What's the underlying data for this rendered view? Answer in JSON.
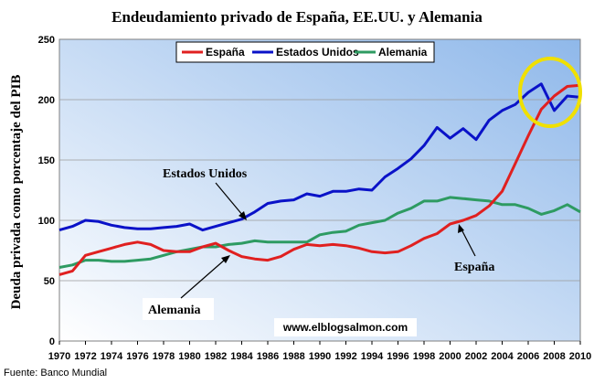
{
  "chart_data": {
    "type": "line",
    "title": "Endeudamiento privado de España, EE.UU. y Alemania",
    "ylabel": "Deuda privada como porcentaje del PIB",
    "xlabel": "",
    "ylim": [
      0,
      250
    ],
    "yticks": [
      "0",
      "50",
      "100",
      "150",
      "200",
      "250"
    ],
    "xlim": [
      1970,
      2010
    ],
    "xticks": [
      "1970",
      "1972",
      "1974",
      "1976",
      "1978",
      "1980",
      "1982",
      "1984",
      "1986",
      "1988",
      "1990",
      "1992",
      "1994",
      "1996",
      "1998",
      "2000",
      "2002",
      "2004",
      "2006",
      "2008",
      "2010"
    ],
    "grid": true,
    "legend_position": "top",
    "x": [
      1970,
      1971,
      1972,
      1973,
      1974,
      1975,
      1976,
      1977,
      1978,
      1979,
      1980,
      1981,
      1982,
      1983,
      1984,
      1985,
      1986,
      1987,
      1988,
      1989,
      1990,
      1991,
      1992,
      1993,
      1994,
      1995,
      1996,
      1997,
      1998,
      1999,
      2000,
      2001,
      2002,
      2003,
      2004,
      2005,
      2006,
      2007,
      2008,
      2009,
      2010
    ],
    "series": [
      {
        "name": "España",
        "color": "#e02020",
        "values": [
          55,
          58,
          71,
          74,
          77,
          80,
          82,
          80,
          75,
          74,
          74,
          78,
          81,
          75,
          70,
          68,
          67,
          70,
          76,
          80,
          79,
          80,
          79,
          77,
          74,
          73,
          74,
          79,
          85,
          89,
          97,
          100,
          104,
          112,
          124,
          147,
          170,
          192,
          203,
          211,
          212
        ]
      },
      {
        "name": "Estados Unidos",
        "color": "#0a12c8",
        "values": [
          92,
          95,
          100,
          99,
          96,
          94,
          93,
          93,
          94,
          95,
          97,
          92,
          95,
          98,
          101,
          107,
          114,
          116,
          117,
          122,
          120,
          124,
          124,
          126,
          125,
          136,
          143,
          151,
          162,
          177,
          168,
          176,
          167,
          183,
          191,
          196,
          206,
          213,
          191,
          203,
          202
        ]
      },
      {
        "name": "Alemania",
        "color": "#2e9b62",
        "values": [
          61,
          63,
          67,
          67,
          66,
          66,
          67,
          68,
          71,
          74,
          76,
          78,
          78,
          80,
          81,
          83,
          82,
          82,
          82,
          82,
          88,
          90,
          91,
          96,
          98,
          100,
          106,
          110,
          116,
          116,
          119,
          118,
          117,
          116,
          113,
          113,
          110,
          105,
          108,
          113,
          107
        ]
      }
    ],
    "annotations": [
      {
        "text": "Estados Unidos",
        "series": "Estados Unidos"
      },
      {
        "text": "España",
        "series": "España"
      },
      {
        "text": "Alemania",
        "series": "Alemania"
      }
    ],
    "highlight_color": "#f0e000",
    "plot_background": [
      "#ffffff",
      "#8fb8ea"
    ],
    "watermark": "www.elblogsalmon.com",
    "source": "Fuente: Banco Mundial"
  }
}
